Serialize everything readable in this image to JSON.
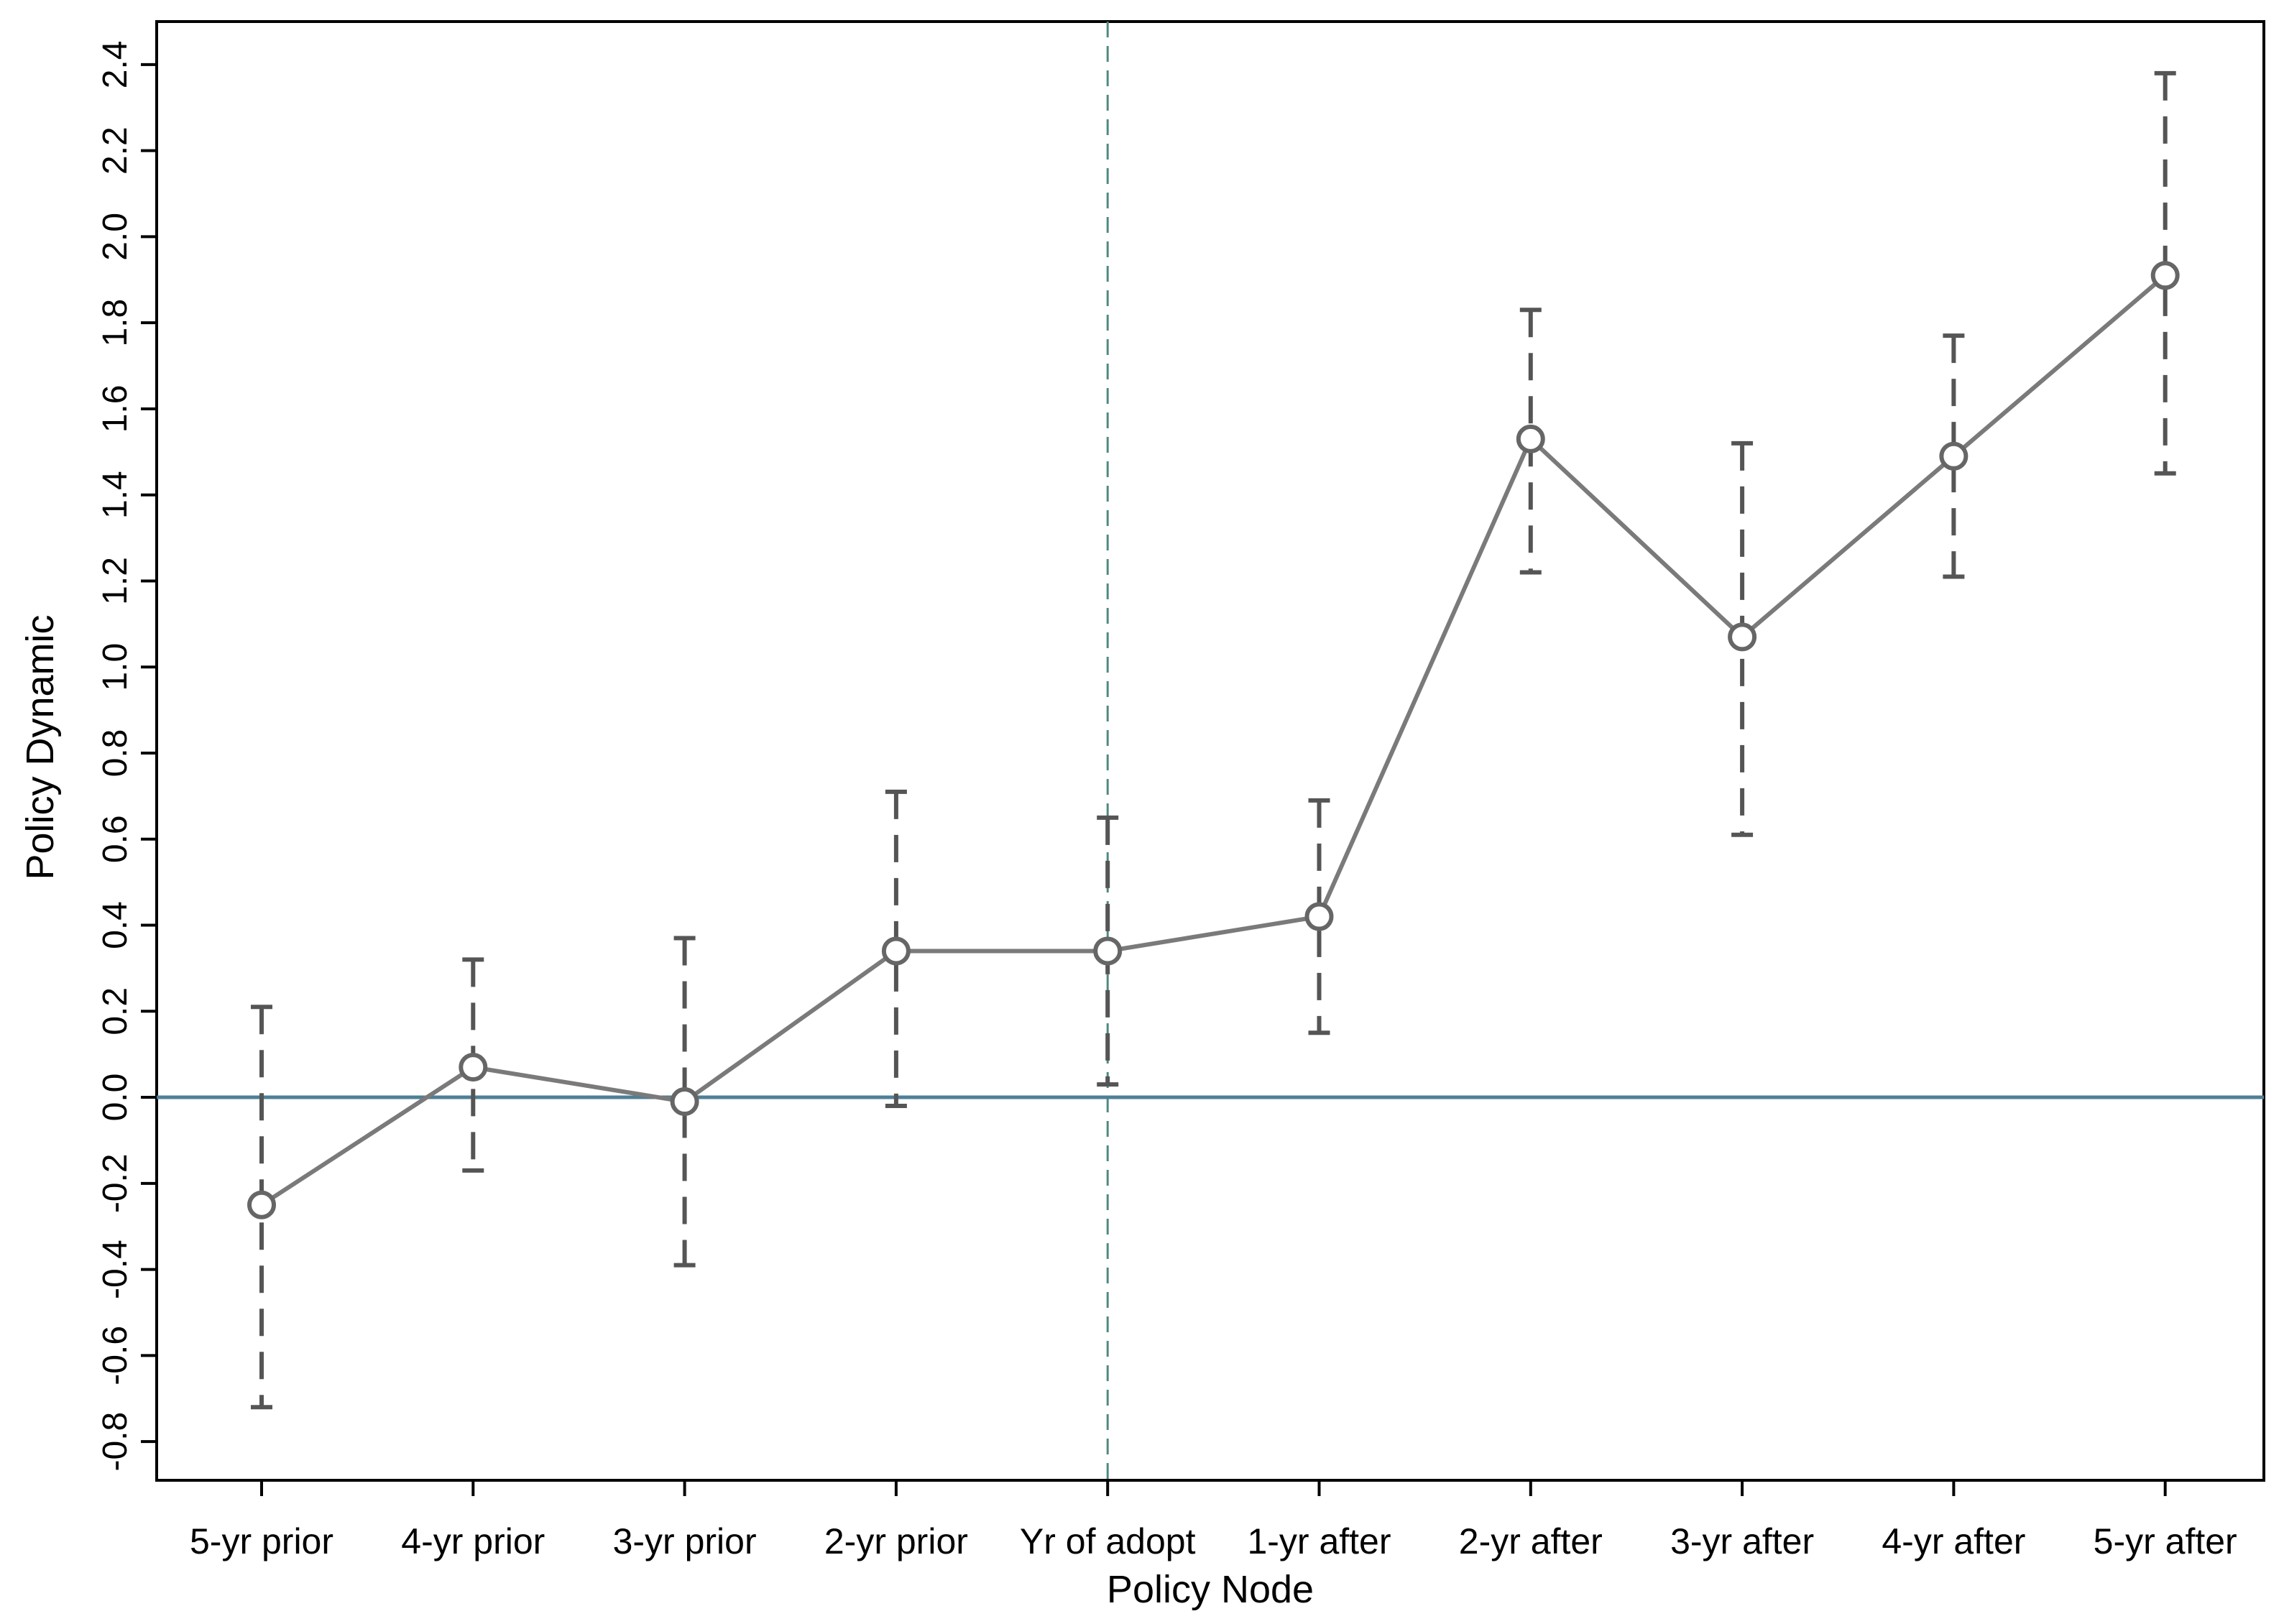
{
  "chart_data": {
    "type": "line",
    "xlabel": "Policy Node",
    "ylabel": "Policy Dynamic",
    "categories": [
      "5-yr prior",
      "4-yr prior",
      "3-yr prior",
      "2-yr prior",
      "Yr of adopt",
      "1-yr after",
      "2-yr after",
      "3-yr after",
      "4-yr after",
      "5-yr after"
    ],
    "estimates": [
      -0.25,
      0.07,
      -0.01,
      0.34,
      0.34,
      0.42,
      1.53,
      1.07,
      1.49,
      1.91
    ],
    "ci_lower": [
      -0.72,
      -0.17,
      -0.39,
      -0.02,
      0.03,
      0.15,
      1.22,
      0.61,
      1.21,
      1.45
    ],
    "ci_upper": [
      0.21,
      0.32,
      0.37,
      0.71,
      0.65,
      0.69,
      1.83,
      1.52,
      1.77,
      2.38
    ],
    "ylim": [
      -0.89,
      2.5
    ],
    "yticks": [
      -0.8,
      -0.6,
      -0.4,
      -0.2,
      0.0,
      0.2,
      0.4,
      0.6,
      0.8,
      1.0,
      1.2,
      1.4,
      1.6,
      1.8,
      2.0,
      2.2,
      2.4
    ],
    "ytick_labels": [
      "-0.8",
      "-0.6",
      "-0.4",
      "-0.2",
      "0.0",
      "0.2",
      "0.4",
      "0.6",
      "0.8",
      "1.0",
      "1.2",
      "1.4",
      "1.6",
      "1.8",
      "2.0",
      "2.2",
      "2.4"
    ],
    "reference_hline": 0,
    "reference_vline_category": "Yr of adopt",
    "grid": false,
    "colors": {
      "line": "#7a7a7a",
      "marker": "#666666",
      "error_bar": "#555555",
      "hline": "#4e7f96",
      "vline": "#4f8a80",
      "axis": "#000000"
    }
  }
}
